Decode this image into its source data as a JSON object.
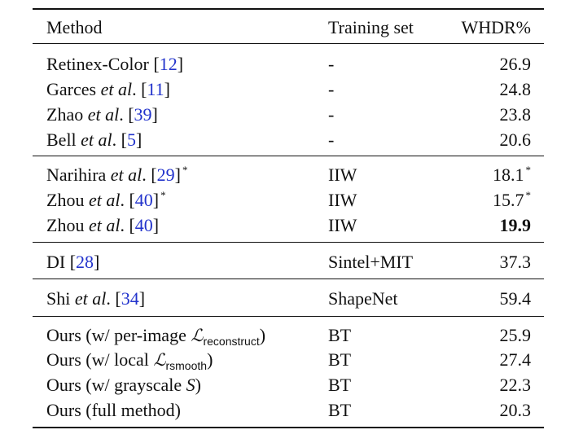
{
  "header": {
    "method": "Method",
    "training_set": "Training set",
    "metric": "WHDR%"
  },
  "groups": [
    [
      {
        "name_pre": "Retinex-Color ",
        "etal": "",
        "ref": "12",
        "ref_star": "",
        "training": "-",
        "value": "26.9",
        "value_star": "",
        "bold": false
      },
      {
        "name_pre": "Garces ",
        "etal": "et al",
        "ref": "11",
        "ref_star": "",
        "training": "-",
        "value": "24.8",
        "value_star": "",
        "bold": false
      },
      {
        "name_pre": "Zhao ",
        "etal": "et al",
        "ref": "39",
        "ref_star": "",
        "training": "-",
        "value": "23.8",
        "value_star": "",
        "bold": false
      },
      {
        "name_pre": "Bell ",
        "etal": "et al",
        "ref": "5",
        "ref_star": "",
        "training": "-",
        "value": "20.6",
        "value_star": "",
        "bold": false
      }
    ],
    [
      {
        "name_pre": "Narihira ",
        "etal": "et al",
        "ref": "29",
        "ref_star": "*",
        "training": "IIW",
        "value": "18.1",
        "value_star": "*",
        "bold": false
      },
      {
        "name_pre": "Zhou ",
        "etal": "et al",
        "ref": "40",
        "ref_star": "*",
        "training": "IIW",
        "value": "15.7",
        "value_star": "*",
        "bold": false
      },
      {
        "name_pre": "Zhou ",
        "etal": "et al",
        "ref": "40",
        "ref_star": "",
        "training": "IIW",
        "value": "19.9",
        "value_star": "",
        "bold": true
      }
    ],
    [
      {
        "name_pre": "DI ",
        "etal": "",
        "ref": "28",
        "ref_star": "",
        "training": "Sintel+MIT",
        "value": "37.3",
        "value_star": "",
        "bold": false
      }
    ],
    [
      {
        "name_pre": "Shi ",
        "etal": "et al",
        "ref": "34",
        "ref_star": "",
        "training": "ShapeNet",
        "value": "59.4",
        "value_star": "",
        "bold": false
      }
    ]
  ],
  "ours": [
    {
      "pre": "Ours (w/ per-image ",
      "symbol": "ℒ",
      "sub": "reconstruct",
      "post": ")",
      "training": "BT",
      "value": "25.9"
    },
    {
      "pre": "Ours (w/ local ",
      "symbol": "ℒ",
      "sub": "rsmooth",
      "post": ")",
      "training": "BT",
      "value": "27.4"
    },
    {
      "pre": "Ours (w/ grayscale ",
      "symbol": "S",
      "sub": "",
      "post": ")",
      "training": "BT",
      "value": "22.3"
    },
    {
      "pre": "Ours (full method)",
      "symbol": "",
      "sub": "",
      "post": "",
      "training": "BT",
      "value": "20.3"
    }
  ]
}
